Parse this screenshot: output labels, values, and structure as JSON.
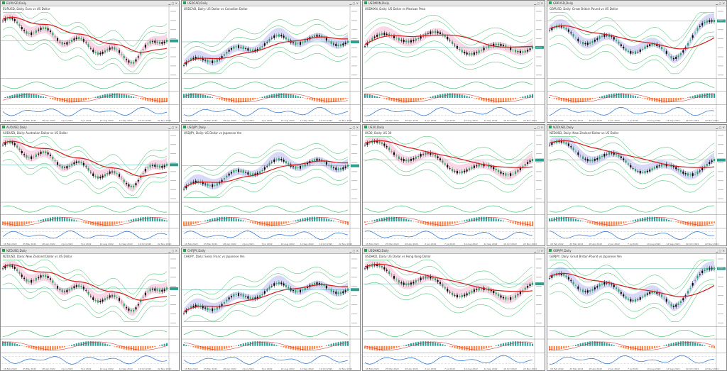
{
  "windows": [
    {
      "title": "EURUSD,Daily",
      "symbol": "EURUSD, Daily: Euro vs US Dollar",
      "kind": "a"
    },
    {
      "title": "USDCAD,Daily",
      "symbol": "USDCAD, Daily: US Dollar vs Canadian Dollar",
      "kind": "b"
    },
    {
      "title": "USDMXN,Daily",
      "symbol": "USDMXN, Daily: US Dollar vs Mexican Peso",
      "kind": "c"
    },
    {
      "title": "GBPUSD,Daily",
      "symbol": "GBPUSD, Daily: Great Britain Pound vs US Dollar",
      "kind": "d"
    },
    {
      "title": "AUDUSD,Daily",
      "symbol": "AUDUSD, Daily: Australian Dollar vs US Dollar",
      "kind": "a"
    },
    {
      "title": "USDJPY,Daily",
      "symbol": "USDJPY, Daily: US Dollar vs Japanese Yen",
      "kind": "b"
    },
    {
      "title": "US30,Daily",
      "symbol": "US30, Daily: US 30",
      "kind": "e"
    },
    {
      "title": "NZDUSD,Daily",
      "symbol": "NZDUSD, Daily: New Zealand Dollar vs US Dollar",
      "kind": "e"
    },
    {
      "title": "NZDUSD,Daily",
      "symbol": "NZDUSD, Daily: New Zealand Dollar vs US Dollar",
      "kind": "a"
    },
    {
      "title": "CHFJPY,Daily",
      "symbol": "CHFJPY, Daily: Swiss Franc vs Japanese Yen",
      "kind": "b"
    },
    {
      "title": "USDHKD,Daily",
      "symbol": "USDHKD, Daily: US Dollar vs Hong Kong Dollar",
      "kind": "e"
    },
    {
      "title": "GBPJPY,Daily",
      "symbol": "GBPJPY, Daily: Great Britain Pound vs Japanese Yen",
      "kind": "d"
    }
  ],
  "time_labels": [
    "18 Feb 2022",
    "25 Mar 2022",
    "28 Apr 2022",
    "2 Jun 2022",
    "7 Jul 2022",
    "10 Aug 2022",
    "14 Sep 2022",
    "19 Oct 2022",
    "22 Nov 2022"
  ],
  "colors": {
    "ma": "#d61a1a",
    "candle_up": "#26a65b",
    "candle_dn": "#000000",
    "band": "#2eb85c",
    "cloud_pink": "#f7c6dd",
    "cloud_blue": "#c9c9f4",
    "hist_orange": "#ff7f3f",
    "hist_teal": "#2aa198",
    "osc": "#1f6fd1"
  }
}
